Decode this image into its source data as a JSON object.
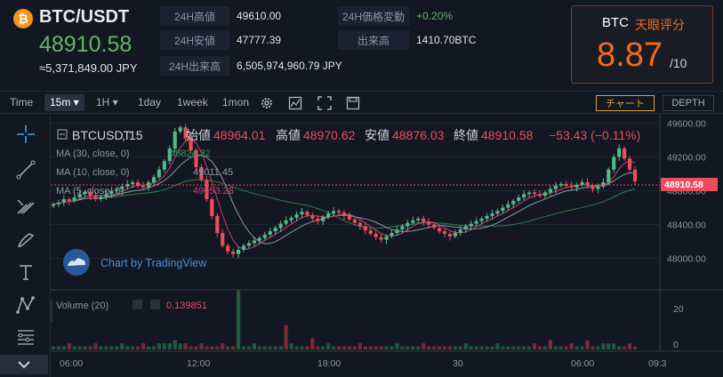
{
  "header": {
    "coin_symbol": "₿",
    "pair": "BTC/USDT",
    "price": "48910.58",
    "price_jpy": "≈5,371,849.00 JPY"
  },
  "stats": {
    "high_label": "24H高値",
    "high_value": "49610.00",
    "low_label": "24H安値",
    "low_value": "47777.39",
    "volume_label": "24H出来高",
    "volume_value": "6,505,974,960.79 JPY",
    "change_label": "24H価格変動",
    "change_value": "+0.20%",
    "amount_label": "出来高",
    "amount_value": "1410.70BTC"
  },
  "score": {
    "coin": "BTC",
    "label": "天眼评分",
    "value": "8.87",
    "denominator": "/10"
  },
  "toolbar": {
    "time_label": "Time",
    "interval_15m": "15m",
    "interval_1h": "1H",
    "interval_1day": "1day",
    "interval_1week": "1week",
    "interval_1mon": "1mon",
    "chart_button": "チャート",
    "depth_button": "DEPTH"
  },
  "legend": {
    "symbol": "BTCUSDT",
    "interval": "15",
    "open_label": "始値",
    "open_value": "48964.01",
    "high_label": "高値",
    "high_value": "48970.62",
    "low_label": "安値",
    "low_value": "48876.03",
    "close_label": "終値",
    "close_value": "48910.58",
    "change_value": "−53.43 (−0.11%)",
    "ma30_label": "MA (30, close, 0)",
    "ma30_value": "48824.32",
    "ma10_label": "MA (10, close, 0)",
    "ma10_value": "49011.45",
    "ma5_label": "MA (5, close, 0)",
    "ma5_value": "49053.28",
    "volume_label": "Volume (20)",
    "volume_value": "0.139851",
    "watermark": "Chart by TradingView"
  },
  "colors": {
    "up": "#53b987",
    "down": "#eb4d5c",
    "accent": "#f26b1d",
    "ma30": "#2e7d46",
    "ma10": "#8a98a8",
    "ma5": "#c2416d"
  },
  "chart_data": {
    "type": "line",
    "price_axis": [
      "49600.00",
      "49200.00",
      "48800.00",
      "48400.00",
      "48000.00"
    ],
    "price_ticks": [
      49600,
      49200,
      48800,
      48400,
      48000
    ],
    "last_price_label": "48910.58",
    "volume_axis": [
      "20",
      "0"
    ],
    "x_labels": [
      "06:00",
      "12:00",
      "18:00",
      "30",
      "06:00",
      "09:3"
    ],
    "ylim": [
      47700,
      49700
    ],
    "closes": [
      48640,
      48660,
      48700,
      48680,
      48720,
      48760,
      48790,
      48740,
      48700,
      48730,
      48760,
      48800,
      48820,
      48850,
      48880,
      48900,
      48860,
      48840,
      48900,
      48960,
      49050,
      49150,
      49300,
      49500,
      49550,
      49420,
      49280,
      49080,
      48930,
      48700,
      48500,
      48300,
      48150,
      48080,
      48050,
      48100,
      48150,
      48180,
      48210,
      48240,
      48280,
      48320,
      48360,
      48410,
      48450,
      48480,
      48520,
      48550,
      48510,
      48470,
      48440,
      48490,
      48530,
      48560,
      48540,
      48500,
      48460,
      48420,
      48380,
      48330,
      48290,
      48250,
      48220,
      48260,
      48300,
      48340,
      48380,
      48420,
      48450,
      48470,
      48430,
      48400,
      48360,
      48320,
      48290,
      48260,
      48300,
      48340,
      48380,
      48410,
      48440,
      48470,
      48500,
      48530,
      48560,
      48600,
      48640,
      48680,
      48720,
      48760,
      48780,
      48760,
      48740,
      48780,
      48820,
      48860,
      48880,
      48860,
      48840,
      48870,
      48900,
      48860,
      48820,
      48850,
      48900,
      49050,
      49200,
      49300,
      49180,
      49050,
      48911
    ],
    "volumes": [
      1,
      1,
      1,
      2,
      1,
      1,
      1,
      1,
      2,
      1,
      1,
      1,
      1,
      2,
      1,
      1,
      1,
      2,
      1,
      1,
      2,
      2,
      2,
      3,
      2,
      2,
      1,
      1,
      2,
      1,
      1,
      1,
      2,
      1,
      1,
      1,
      1,
      1,
      2,
      1,
      1,
      1,
      1,
      1,
      1,
      2,
      1,
      1,
      1,
      1,
      1,
      1,
      2,
      1,
      1,
      1,
      1,
      1,
      2,
      1,
      1,
      1,
      1,
      1,
      1,
      2,
      1,
      1,
      1,
      1,
      2,
      1,
      1,
      1,
      1,
      1,
      1,
      1,
      2,
      1,
      1,
      1,
      1,
      1,
      2,
      1,
      1,
      1,
      1,
      1,
      1,
      2,
      1,
      1,
      1,
      1,
      1,
      1,
      2,
      1,
      1,
      3,
      1,
      1,
      2,
      2,
      2,
      1,
      1,
      2,
      1
    ],
    "volume_spikes": {
      "57": 32,
      "72": 13,
      "79": 6,
      "152": 5
    }
  }
}
